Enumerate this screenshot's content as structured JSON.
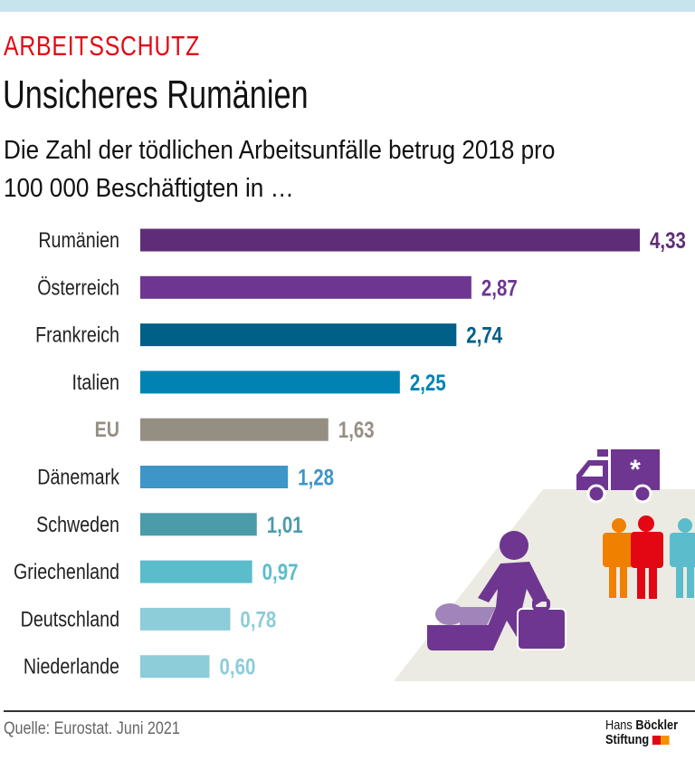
{
  "kicker": "ARBEITSSCHUTZ",
  "title": "Unsicheres Rumänien",
  "subtitle_lines": [
    "Die Zahl der tödlichen Arbeitsunfälle betrug 2018 pro",
    "100 000 Beschäftigten in …"
  ],
  "source": "Quelle: Eurostat. Juni 2021",
  "logo": {
    "line1_light": "Hans",
    "line1_bold": "Böckler",
    "line2": "Stiftung",
    "colors": [
      "#e30613",
      "#f39200"
    ]
  },
  "illustration": {
    "icons": [
      "ambulance-icon",
      "workers-icon",
      "injured-person-icon"
    ],
    "colors": {
      "purple": "#6e3690",
      "light_purple": "#a184ba",
      "orange": "#f08000",
      "red": "#e30613",
      "teal": "#5bbccb",
      "ground": "#ecebe3"
    }
  },
  "chart_data": {
    "type": "bar",
    "orientation": "horizontal",
    "categories": [
      "Rumänien",
      "Österreich",
      "Frankreich",
      "Italien",
      "EU",
      "Dänemark",
      "Schweden",
      "Griechenland",
      "Deutschland",
      "Niederlande"
    ],
    "values": [
      4.33,
      2.87,
      2.74,
      2.25,
      1.63,
      1.28,
      1.01,
      0.97,
      0.78,
      0.6
    ],
    "value_labels": [
      "4,33",
      "2,87",
      "2,74",
      "2,25",
      "1,63",
      "1,28",
      "1,01",
      "0,97",
      "0,78",
      "0,60"
    ],
    "colors": [
      "#5f2d78",
      "#6e3690",
      "#006087",
      "#0083b3",
      "#958f83",
      "#3d95c8",
      "#4b9ba8",
      "#5bbccb",
      "#8dccd9",
      "#8dccd9"
    ],
    "highlight_category": "EU",
    "xlim": [
      0,
      4.33
    ],
    "grid": false
  }
}
